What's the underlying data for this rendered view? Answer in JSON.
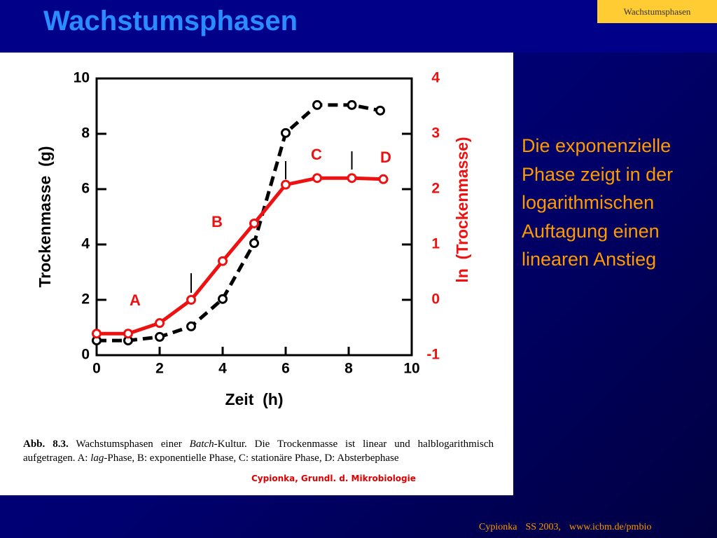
{
  "slide": {
    "title": "Wachstumsphasen",
    "tag": "Wachstumsphasen",
    "body": "Die exponenzielle Phase zeigt in der logarithmischen Auftagung einen linearen Anstieg",
    "caption": [
      "Abb. 8.3.",
      " Wachstumsphasen einer ",
      "Batch",
      "-Kultur. Die Trockenmasse ist linear und halblogarithmisch aufgetragen. A: ",
      "lag",
      "-Phase, B: exponentielle Phase, C: stationäre Phase, D: Absterbephase"
    ],
    "credit": "Cypionka, Grundl. d. Mikrobiologie",
    "footer": [
      "Cypionka",
      "SS 2003,",
      "www.icbm.de/pmbio"
    ]
  },
  "chart_data": {
    "type": "line",
    "x_label": "Zeit  (h)",
    "y_label": "Trockenmasse  (g)",
    "y2_label": "ln  (Trockenmasse)",
    "xlim": [
      0,
      10
    ],
    "xticks": [
      0,
      2,
      4,
      6,
      8,
      10
    ],
    "ylim": [
      0,
      10
    ],
    "yticks": [
      0,
      2,
      4,
      6,
      8,
      10
    ],
    "y2lim": [
      -1,
      4
    ],
    "y2ticks": [
      -1,
      0,
      1,
      2,
      3,
      4
    ],
    "annotations": [
      "A",
      "B",
      "C",
      "D"
    ],
    "series": [
      {
        "color": "#000000",
        "dashed": true,
        "x": [
          0,
          1,
          2,
          3,
          4,
          5,
          6,
          7,
          8.1,
          9
        ],
        "values": [
          0.53,
          0.53,
          0.66,
          1.04,
          2.03,
          4.05,
          8.03,
          9.04,
          9.04,
          8.84
        ]
      },
      {
        "color": "#ee1111",
        "dashed": false,
        "axis": "y2",
        "x": [
          0,
          1,
          2,
          3,
          4,
          5,
          6,
          7,
          8.1,
          9.1
        ],
        "values": [
          -0.61,
          -0.61,
          -0.42,
          0,
          0.7,
          1.38,
          2.08,
          2.2,
          2.2,
          2.18
        ]
      }
    ]
  }
}
